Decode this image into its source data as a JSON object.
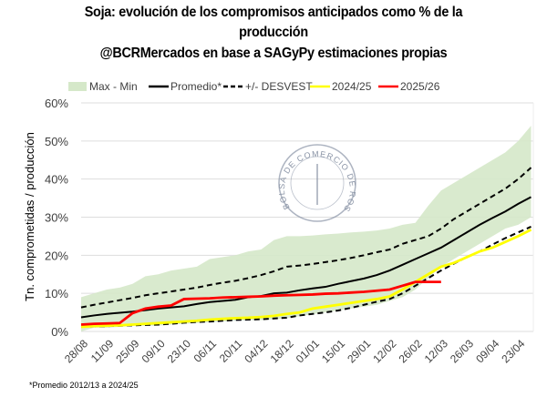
{
  "chart_data": {
    "type": "line",
    "title_line1": "Soja: evolución de los compromisos anticipados como % de la",
    "title_line2": "producción",
    "subtitle": "@BCRMercados en base a SAGyPy estimaciones propias",
    "ylabel": "Tn. comprometidas / producción",
    "xlabel": "",
    "ylim": [
      0,
      60
    ],
    "yticks": [
      "0%",
      "10%",
      "20%",
      "30%",
      "40%",
      "50%",
      "60%"
    ],
    "grid": true,
    "legend_position": "top",
    "x_tick_labels": [
      "28/08",
      "11/09",
      "25/09",
      "09/10",
      "23/10",
      "06/11",
      "20/11",
      "04/12",
      "18/12",
      "01/01",
      "15/01",
      "29/01",
      "12/02",
      "26/02",
      "12/03",
      "26/03",
      "09/04",
      "23/04"
    ],
    "band": {
      "name": "Max - Min",
      "color": "#d5e8c9",
      "max": [
        9,
        10,
        11,
        11.5,
        12.5,
        14.5,
        15,
        16,
        16.5,
        17,
        19,
        19.5,
        20,
        21,
        21.5,
        24,
        25,
        25,
        25.2,
        25.5,
        25.7,
        26,
        26.2,
        26.5,
        27,
        28,
        28.5,
        33,
        37,
        39,
        41,
        43,
        45,
        47,
        50,
        54
      ],
      "min": [
        0,
        1,
        1,
        1.2,
        1.5,
        1.5,
        1.5,
        1.8,
        2,
        2.2,
        2.4,
        2.6,
        2.8,
        3,
        3,
        3.2,
        3.5,
        4,
        4.5,
        5,
        5.5,
        6,
        6.5,
        7,
        8,
        9,
        11,
        14,
        17,
        19,
        21,
        23,
        25,
        27,
        28,
        30
      ]
    },
    "series": [
      {
        "name": "Promedio*",
        "color": "#000000",
        "dash": false,
        "values": [
          3.7,
          4.2,
          4.6,
          4.9,
          5.2,
          5.6,
          6,
          6.3,
          6.6,
          7.2,
          7.7,
          8,
          8.3,
          9,
          9.3,
          10,
          10.2,
          10.8,
          11.3,
          11.7,
          12.5,
          13.2,
          13.9,
          14.8,
          16,
          17.5,
          19,
          20.5,
          22,
          24,
          26,
          28,
          29.8,
          31.5,
          33.5,
          35.3
        ]
      },
      {
        "name": "+/- DESVEST",
        "color": "#000000",
        "dash": true,
        "values": [
          6.3,
          7,
          7.6,
          8.2,
          8.8,
          9.5,
          10,
          10.5,
          11,
          11.5,
          12.2,
          12.8,
          13.3,
          14,
          14.8,
          15.8,
          17,
          17.3,
          17.7,
          18.2,
          18.7,
          19.3,
          20,
          20.8,
          21.5,
          23,
          24,
          25,
          27,
          29.5,
          31.5,
          33.5,
          35.5,
          37.5,
          40,
          43
        ]
      },
      {
        "name": "",
        "color": "#000000",
        "dash": true,
        "values": [
          1.2,
          1.3,
          1.4,
          1.5,
          1.6,
          1.7,
          1.8,
          2,
          2.3,
          2.5,
          2.6,
          2.8,
          3,
          3.1,
          3.2,
          3.4,
          3.6,
          4.2,
          4.6,
          5,
          5.5,
          6.2,
          7,
          7.8,
          8.5,
          10,
          12,
          14,
          16,
          17.8,
          19.5,
          21,
          22.8,
          24.5,
          26,
          27.5
        ]
      },
      {
        "name": "2024/25",
        "color": "#ffff00",
        "dash": false,
        "values": [
          1.2,
          1.4,
          1.5,
          1.6,
          1.8,
          2,
          2.2,
          2.4,
          2.6,
          2.8,
          3.1,
          3.3,
          3.5,
          3.6,
          3.8,
          4.1,
          4.6,
          5,
          6,
          6.5,
          7,
          7.5,
          8,
          8.5,
          9.2,
          11,
          13,
          15,
          17,
          18,
          19.5,
          21,
          22,
          23.5,
          25,
          26.7
        ]
      },
      {
        "name": "2025/26",
        "color": "#ff0000",
        "dash": false,
        "values": [
          1.8,
          2,
          2.1,
          2.2,
          4.8,
          6,
          6.5,
          6.8,
          8.5,
          8.6,
          8.7,
          8.9,
          9,
          9.1,
          9.2,
          9.4,
          9.5,
          9.6,
          9.7,
          9.9,
          10,
          10.2,
          10.4,
          10.7,
          11,
          12,
          13,
          13,
          13
        ]
      }
    ],
    "footnote": "*Promedio 2012/13 a 2024/25",
    "watermark": "BOLSA DE COMERCIO DE ROSARIO"
  }
}
